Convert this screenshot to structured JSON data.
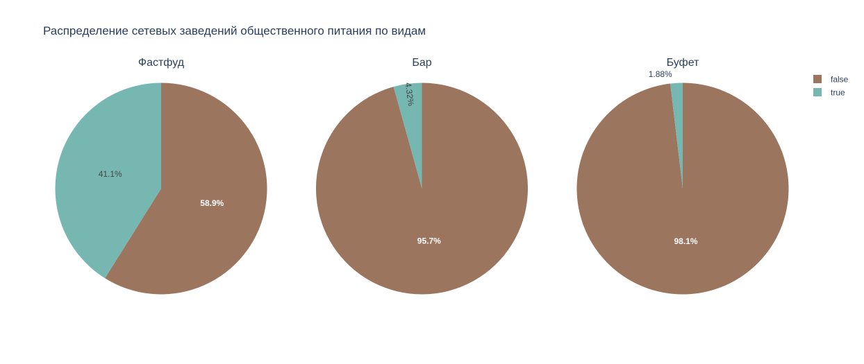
{
  "chart_data": {
    "type": "pie",
    "title": "Распределение сетевых заведений общественного питания по видам",
    "legend": {
      "placement": "top-right",
      "entries": [
        {
          "label": "false",
          "color": "#9c755f"
        },
        {
          "label": "true",
          "color": "#76b7b2"
        }
      ]
    },
    "pies": [
      {
        "title": "Фастфуд",
        "slices": [
          {
            "category": "false",
            "value": 58.9,
            "label": "58.9%"
          },
          {
            "category": "true",
            "value": 41.1,
            "label": "41.1%"
          }
        ]
      },
      {
        "title": "Бар",
        "slices": [
          {
            "category": "false",
            "value": 95.68,
            "label": "95.7%"
          },
          {
            "category": "true",
            "value": 4.32,
            "label": "4.32%"
          }
        ]
      },
      {
        "title": "Буфет",
        "slices": [
          {
            "category": "false",
            "value": 98.12,
            "label": "98.1%"
          },
          {
            "category": "true",
            "value": 1.88,
            "label": "1.88%"
          }
        ]
      }
    ]
  }
}
